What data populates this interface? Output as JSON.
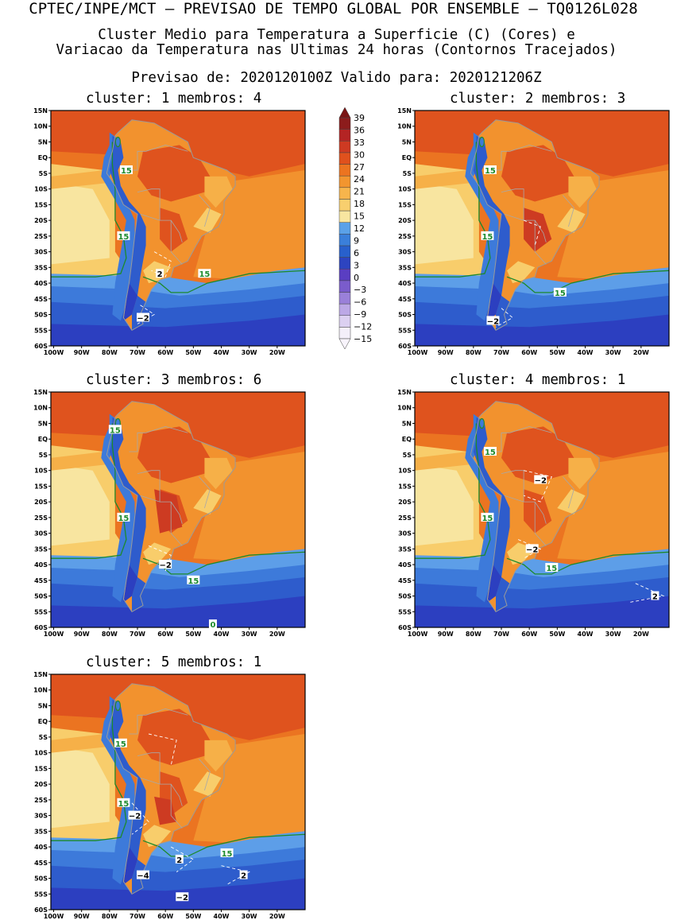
{
  "header": {
    "line1": "CPTEC/INPE/MCT – PREVISAO DE TEMPO GLOBAL POR ENSEMBLE – TQ0126L028",
    "line2": "Cluster Medio para Temperatura a Superficie (C) (Cores) e",
    "line3": "Variacao da Temperatura nas Ultimas 24 horas (Contornos Tracejados)",
    "line4": "Previsao de: 2020120100Z    Valido para: 2020121206Z"
  },
  "panels": [
    {
      "title": "cluster: 1  membros: 4",
      "variant": 1,
      "labels": [
        {
          "text": "15",
          "lon": -74,
          "lat": -4,
          "type": "green"
        },
        {
          "text": "15",
          "lon": -75,
          "lat": -25,
          "type": "green"
        },
        {
          "text": "15",
          "lon": -46,
          "lat": -37,
          "type": "green"
        },
        {
          "text": "2",
          "lon": -62,
          "lat": -37,
          "type": "white"
        },
        {
          "text": "−2",
          "lon": -68,
          "lat": -51,
          "type": "white"
        }
      ]
    },
    {
      "title": "cluster: 2  membros: 3",
      "variant": 2,
      "labels": [
        {
          "text": "15",
          "lon": -74,
          "lat": -4,
          "type": "green"
        },
        {
          "text": "15",
          "lon": -75,
          "lat": -25,
          "type": "green"
        },
        {
          "text": "15",
          "lon": -49,
          "lat": -43,
          "type": "green"
        },
        {
          "text": "−2",
          "lon": -73,
          "lat": -52,
          "type": "white"
        }
      ]
    },
    {
      "title": "cluster: 3  membros: 6",
      "variant": 3,
      "labels": [
        {
          "text": "15",
          "lon": -78,
          "lat": 3,
          "type": "green"
        },
        {
          "text": "15",
          "lon": -75,
          "lat": -25,
          "type": "green"
        },
        {
          "text": "15",
          "lon": -50,
          "lat": -45,
          "type": "green"
        },
        {
          "text": "−2",
          "lon": -60,
          "lat": -40,
          "type": "white"
        },
        {
          "text": "0",
          "lon": -43,
          "lat": -59,
          "type": "green"
        }
      ]
    },
    {
      "title": "cluster: 4  membros: 1",
      "variant": 4,
      "labels": [
        {
          "text": "15",
          "lon": -74,
          "lat": -4,
          "type": "green"
        },
        {
          "text": "15",
          "lon": -75,
          "lat": -25,
          "type": "green"
        },
        {
          "text": "15",
          "lon": -52,
          "lat": -41,
          "type": "green"
        },
        {
          "text": "−2",
          "lon": -56,
          "lat": -13,
          "type": "white"
        },
        {
          "text": "−2",
          "lon": -59,
          "lat": -35,
          "type": "white"
        },
        {
          "text": "2",
          "lon": -15,
          "lat": -50,
          "type": "white"
        }
      ]
    },
    {
      "title": "cluster: 5  membros: 1",
      "variant": 5,
      "labels": [
        {
          "text": "15",
          "lon": -76,
          "lat": -7,
          "type": "green"
        },
        {
          "text": "15",
          "lon": -75,
          "lat": -26,
          "type": "green"
        },
        {
          "text": "15",
          "lon": -38,
          "lat": -42,
          "type": "green"
        },
        {
          "text": "−2",
          "lon": -71,
          "lat": -30,
          "type": "white"
        },
        {
          "text": "2",
          "lon": -55,
          "lat": -44,
          "type": "white"
        },
        {
          "text": "2",
          "lon": -32,
          "lat": -49,
          "type": "white"
        },
        {
          "text": "−4",
          "lon": -68,
          "lat": -49,
          "type": "white"
        },
        {
          "text": "−2",
          "lon": -54,
          "lat": -56,
          "type": "white"
        }
      ]
    }
  ],
  "map_axes": {
    "lat_ticks": [
      "15N",
      "10N",
      "5N",
      "EQ",
      "5S",
      "10S",
      "15S",
      "20S",
      "25S",
      "30S",
      "35S",
      "40S",
      "45S",
      "50S",
      "55S",
      "60S"
    ],
    "lon_ticks": [
      "100W",
      "90W",
      "80W",
      "70W",
      "60W",
      "50W",
      "40W",
      "30W",
      "20W"
    ]
  },
  "colorbar": {
    "labels": [
      "39",
      "36",
      "33",
      "30",
      "27",
      "24",
      "21",
      "18",
      "15",
      "12",
      "9",
      "6",
      "3",
      "0",
      "−3",
      "−6",
      "−9",
      "−12",
      "−15"
    ],
    "colors": [
      "#f4effa",
      "#dcd0f1",
      "#bca8e6",
      "#9a80d9",
      "#7a5ccc",
      "#5a3ec2",
      "#2d44c0",
      "#2860cc",
      "#3a7fda",
      "#5aa1e8",
      "#f8e6a0",
      "#f8cf6e",
      "#f7b54c",
      "#f2952f",
      "#ec7420",
      "#e0511d",
      "#ce3a22",
      "#b42424",
      "#8c1c1c"
    ]
  }
}
